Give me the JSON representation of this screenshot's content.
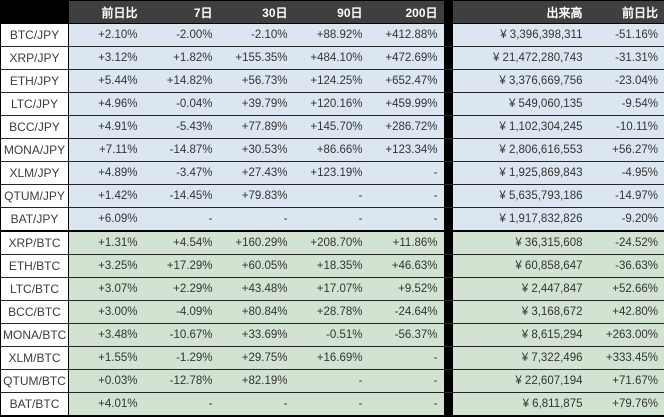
{
  "header": {
    "corner": "",
    "change_1d": "前日比",
    "d7": "7日",
    "d30": "30日",
    "d90": "90日",
    "d200": "200日",
    "volume": "出来高",
    "vol_change_1d": "前日比"
  },
  "colors": {
    "header_bg": "#3f3f3f",
    "header_text": "#ffffff",
    "jpy_row_bg": "#dce6f1",
    "btc_row_bg": "#d2e4d1",
    "pair_cell_bg": "#ffffff",
    "divider": "#000000",
    "text": "#333333"
  },
  "chart_data": {
    "type": "table",
    "title": "",
    "columns": [
      "",
      "前日比",
      "7日",
      "30日",
      "90日",
      "200日",
      "出来高",
      "前日比"
    ],
    "rows": [
      {
        "pair": "BTC/JPY",
        "group": "jpy",
        "change_1d": "+2.10%",
        "d7": "-2.00%",
        "d30": "-2.10%",
        "d90": "+88.92%",
        "d200": "+412.88%",
        "volume": "¥ 3,396,398,311",
        "vol_change_1d": "-51.16%"
      },
      {
        "pair": "XRP/JPY",
        "group": "jpy",
        "change_1d": "+3.12%",
        "d7": "+1.82%",
        "d30": "+155.35%",
        "d90": "+484.10%",
        "d200": "+472.69%",
        "volume": "¥ 21,472,280,743",
        "vol_change_1d": "-31.31%"
      },
      {
        "pair": "ETH/JPY",
        "group": "jpy",
        "change_1d": "+5.44%",
        "d7": "+14.82%",
        "d30": "+56.73%",
        "d90": "+124.25%",
        "d200": "+652.47%",
        "volume": "¥ 3,376,669,756",
        "vol_change_1d": "-23.04%"
      },
      {
        "pair": "LTC/JPY",
        "group": "jpy",
        "change_1d": "+4.96%",
        "d7": "-0.04%",
        "d30": "+39.79%",
        "d90": "+120.16%",
        "d200": "+459.99%",
        "volume": "¥ 549,060,135",
        "vol_change_1d": "-9.54%"
      },
      {
        "pair": "BCC/JPY",
        "group": "jpy",
        "change_1d": "+4.91%",
        "d7": "-5.43%",
        "d30": "+77.89%",
        "d90": "+145.70%",
        "d200": "+286.72%",
        "volume": "¥ 1,102,304,245",
        "vol_change_1d": "-10.11%"
      },
      {
        "pair": "MONA/JPY",
        "group": "jpy",
        "change_1d": "+7.11%",
        "d7": "-14.87%",
        "d30": "+30.53%",
        "d90": "+86.66%",
        "d200": "+123.34%",
        "volume": "¥ 2,806,616,553",
        "vol_change_1d": "+56.27%"
      },
      {
        "pair": "XLM/JPY",
        "group": "jpy",
        "change_1d": "+4.89%",
        "d7": "-3.47%",
        "d30": "+27.43%",
        "d90": "+123.19%",
        "d200": "-",
        "volume": "¥ 1,925,869,843",
        "vol_change_1d": "-4.95%"
      },
      {
        "pair": "QTUM/JPY",
        "group": "jpy",
        "change_1d": "+1.42%",
        "d7": "-14.45%",
        "d30": "+79.83%",
        "d90": "-",
        "d200": "-",
        "volume": "¥ 5,635,793,186",
        "vol_change_1d": "-14.97%"
      },
      {
        "pair": "BAT/JPY",
        "group": "jpy",
        "change_1d": "+6.09%",
        "d7": "-",
        "d30": "-",
        "d90": "-",
        "d200": "-",
        "volume": "¥ 1,917,832,826",
        "vol_change_1d": "-9.20%"
      },
      {
        "pair": "XRP/BTC",
        "group": "btc",
        "change_1d": "+1.31%",
        "d7": "+4.54%",
        "d30": "+160.29%",
        "d90": "+208.70%",
        "d200": "+11.86%",
        "volume": "¥ 36,315,608",
        "vol_change_1d": "-24.52%"
      },
      {
        "pair": "ETH/BTC",
        "group": "btc",
        "change_1d": "+3.25%",
        "d7": "+17.29%",
        "d30": "+60.05%",
        "d90": "+18.35%",
        "d200": "+46.63%",
        "volume": "¥ 60,858,647",
        "vol_change_1d": "-36.63%"
      },
      {
        "pair": "LTC/BTC",
        "group": "btc",
        "change_1d": "+3.07%",
        "d7": "+2.29%",
        "d30": "+43.48%",
        "d90": "+17.07%",
        "d200": "+9.52%",
        "volume": "¥ 2,447,847",
        "vol_change_1d": "+52.66%"
      },
      {
        "pair": "BCC/BTC",
        "group": "btc",
        "change_1d": "+3.00%",
        "d7": "-4.09%",
        "d30": "+80.84%",
        "d90": "+28.78%",
        "d200": "-24.64%",
        "volume": "¥ 3,168,672",
        "vol_change_1d": "+42.80%"
      },
      {
        "pair": "MONA/BTC",
        "group": "btc",
        "change_1d": "+3.48%",
        "d7": "-10.67%",
        "d30": "+33.69%",
        "d90": "-0.51%",
        "d200": "-56.37%",
        "volume": "¥ 8,615,294",
        "vol_change_1d": "+263.00%"
      },
      {
        "pair": "XLM/BTC",
        "group": "btc",
        "change_1d": "+1.55%",
        "d7": "-1.29%",
        "d30": "+29.75%",
        "d90": "+16.69%",
        "d200": "-",
        "volume": "¥ 7,322,496",
        "vol_change_1d": "+333.45%"
      },
      {
        "pair": "QTUM/BTC",
        "group": "btc",
        "change_1d": "+0.03%",
        "d7": "-12.78%",
        "d30": "+82.19%",
        "d90": "-",
        "d200": "-",
        "volume": "¥ 22,607,194",
        "vol_change_1d": "+71.67%"
      },
      {
        "pair": "BAT/BTC",
        "group": "btc",
        "change_1d": "+4.01%",
        "d7": "-",
        "d30": "-",
        "d90": "-",
        "d200": "-",
        "volume": "¥ 6,811,875",
        "vol_change_1d": "+79.76%"
      }
    ]
  }
}
